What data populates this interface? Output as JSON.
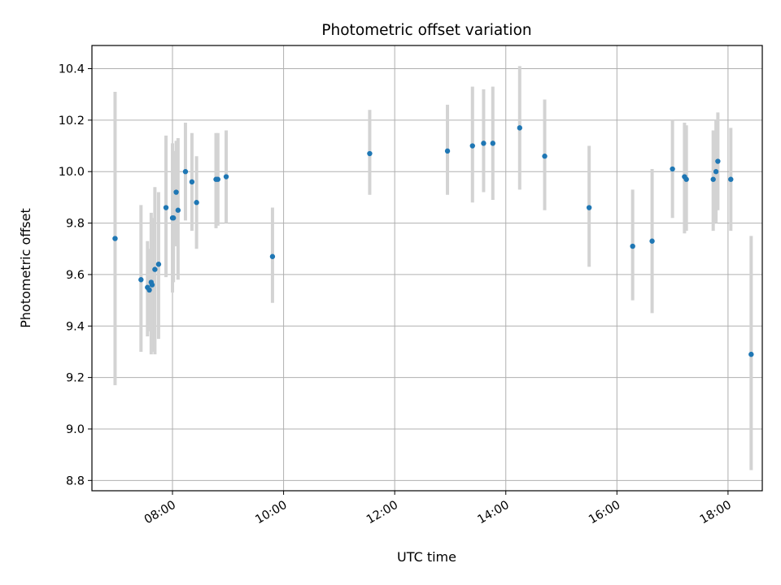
{
  "chart_data": {
    "type": "scatter",
    "title": "Photometric offset variation",
    "xlabel": "UTC time",
    "ylabel": "Photometric offset",
    "x_unit": "hours UTC",
    "xlim": [
      "06:33",
      "18:37"
    ],
    "ylim": [
      8.76,
      10.49
    ],
    "x_ticks": [
      "08:00",
      "10:00",
      "12:00",
      "14:00",
      "16:00",
      "18:00"
    ],
    "y_ticks": [
      "8.8",
      "9.0",
      "9.2",
      "9.4",
      "9.6",
      "9.8",
      "10.0",
      "10.2",
      "10.4"
    ],
    "grid": true,
    "point_color": "#1f77b4",
    "errorbar_color": "#d3d3d3",
    "points": [
      {
        "x": "06:58",
        "y": 9.74,
        "low": 9.17,
        "high": 10.31
      },
      {
        "x": "07:26",
        "y": 9.58,
        "low": 9.3,
        "high": 9.87
      },
      {
        "x": "07:33",
        "y": 9.55,
        "low": 9.36,
        "high": 9.73
      },
      {
        "x": "07:35",
        "y": 9.54,
        "low": 9.38,
        "high": 9.7
      },
      {
        "x": "07:37",
        "y": 9.57,
        "low": 9.29,
        "high": 9.84
      },
      {
        "x": "07:38",
        "y": 9.56,
        "low": 9.3,
        "high": 9.82
      },
      {
        "x": "07:41",
        "y": 9.62,
        "low": 9.29,
        "high": 9.94
      },
      {
        "x": "07:45",
        "y": 9.64,
        "low": 9.35,
        "high": 9.92
      },
      {
        "x": "07:53",
        "y": 9.86,
        "low": 9.59,
        "high": 10.14
      },
      {
        "x": "08:00",
        "y": 9.82,
        "low": 9.53,
        "high": 10.11
      },
      {
        "x": "08:01",
        "y": 9.82,
        "low": 9.57,
        "high": 10.08
      },
      {
        "x": "08:04",
        "y": 9.92,
        "low": 9.71,
        "high": 10.12
      },
      {
        "x": "08:06",
        "y": 9.85,
        "low": 9.58,
        "high": 10.13
      },
      {
        "x": "08:14",
        "y": 10.0,
        "low": 9.81,
        "high": 10.19
      },
      {
        "x": "08:21",
        "y": 9.96,
        "low": 9.77,
        "high": 10.15
      },
      {
        "x": "08:26",
        "y": 9.88,
        "low": 9.7,
        "high": 10.06
      },
      {
        "x": "08:47",
        "y": 9.97,
        "low": 9.78,
        "high": 10.15
      },
      {
        "x": "08:49",
        "y": 9.97,
        "low": 9.79,
        "high": 10.15
      },
      {
        "x": "08:58",
        "y": 9.98,
        "low": 9.8,
        "high": 10.16
      },
      {
        "x": "09:48",
        "y": 9.67,
        "low": 9.49,
        "high": 9.86
      },
      {
        "x": "11:33",
        "y": 10.07,
        "low": 9.91,
        "high": 10.24
      },
      {
        "x": "12:57",
        "y": 10.08,
        "low": 9.91,
        "high": 10.26
      },
      {
        "x": "13:24",
        "y": 10.1,
        "low": 9.88,
        "high": 10.33
      },
      {
        "x": "13:36",
        "y": 10.11,
        "low": 9.92,
        "high": 10.32
      },
      {
        "x": "13:46",
        "y": 10.11,
        "low": 9.89,
        "high": 10.33
      },
      {
        "x": "14:15",
        "y": 10.17,
        "low": 9.93,
        "high": 10.41
      },
      {
        "x": "14:42",
        "y": 10.06,
        "low": 9.85,
        "high": 10.28
      },
      {
        "x": "15:30",
        "y": 9.86,
        "low": 9.63,
        "high": 10.1
      },
      {
        "x": "16:17",
        "y": 9.71,
        "low": 9.5,
        "high": 9.93
      },
      {
        "x": "16:38",
        "y": 9.73,
        "low": 9.45,
        "high": 10.01
      },
      {
        "x": "17:00",
        "y": 10.01,
        "low": 9.82,
        "high": 10.2
      },
      {
        "x": "17:13",
        "y": 9.98,
        "low": 9.76,
        "high": 10.19
      },
      {
        "x": "17:15",
        "y": 9.97,
        "low": 9.77,
        "high": 10.18
      },
      {
        "x": "17:44",
        "y": 9.97,
        "low": 9.77,
        "high": 10.16
      },
      {
        "x": "17:47",
        "y": 10.0,
        "low": 9.8,
        "high": 10.2
      },
      {
        "x": "17:49",
        "y": 10.04,
        "low": 9.85,
        "high": 10.23
      },
      {
        "x": "18:03",
        "y": 9.97,
        "low": 9.77,
        "high": 10.17
      },
      {
        "x": "18:25",
        "y": 9.29,
        "low": 8.84,
        "high": 9.75
      }
    ]
  }
}
